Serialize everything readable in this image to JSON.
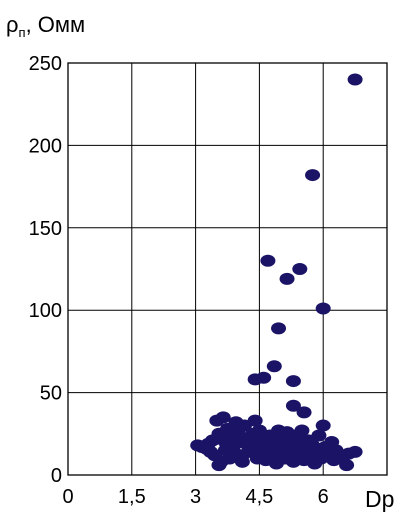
{
  "chart_data": {
    "type": "scatter",
    "ylabel": "ρ",
    "ylabel_subscript": "п",
    "ylabel_unit": ", Омм",
    "xlabel": "Dp",
    "xlim": [
      0,
      7.5
    ],
    "ylim": [
      0,
      250
    ],
    "x_ticks": [
      0,
      1.5,
      3,
      4.5,
      6
    ],
    "x_tick_labels": [
      "0",
      "1,5",
      "3",
      "4,5",
      "6"
    ],
    "y_ticks": [
      0,
      50,
      100,
      150,
      200,
      250
    ],
    "y_tick_labels": [
      "0",
      "50",
      "100",
      "150",
      "200",
      "250"
    ],
    "grid": true,
    "point_color": "#1b1466",
    "points": [
      [
        6.75,
        240
      ],
      [
        5.75,
        182
      ],
      [
        4.7,
        130
      ],
      [
        5.45,
        125
      ],
      [
        5.15,
        119
      ],
      [
        6.0,
        101
      ],
      [
        4.95,
        89
      ],
      [
        4.85,
        66
      ],
      [
        4.6,
        59
      ],
      [
        4.4,
        58
      ],
      [
        5.3,
        57
      ],
      [
        5.3,
        42
      ],
      [
        5.55,
        38
      ],
      [
        3.05,
        18
      ],
      [
        3.15,
        17
      ],
      [
        3.25,
        16
      ],
      [
        3.3,
        19
      ],
      [
        3.35,
        14
      ],
      [
        3.4,
        21
      ],
      [
        3.45,
        12
      ],
      [
        3.5,
        33
      ],
      [
        3.55,
        25
      ],
      [
        3.6,
        8
      ],
      [
        3.65,
        35
      ],
      [
        3.7,
        20
      ],
      [
        3.7,
        15
      ],
      [
        3.75,
        28
      ],
      [
        3.8,
        10
      ],
      [
        3.85,
        23
      ],
      [
        3.9,
        18
      ],
      [
        3.9,
        14
      ],
      [
        3.95,
        32
      ],
      [
        4.0,
        26
      ],
      [
        4.05,
        20
      ],
      [
        4.1,
        12
      ],
      [
        4.1,
        8
      ],
      [
        4.15,
        30
      ],
      [
        4.2,
        22
      ],
      [
        4.25,
        17
      ],
      [
        4.3,
        14
      ],
      [
        4.35,
        25
      ],
      [
        4.4,
        33
      ],
      [
        4.45,
        19
      ],
      [
        4.45,
        10
      ],
      [
        4.5,
        27
      ],
      [
        4.55,
        22
      ],
      [
        4.6,
        15
      ],
      [
        4.65,
        9
      ],
      [
        4.7,
        18
      ],
      [
        4.75,
        24
      ],
      [
        4.8,
        12
      ],
      [
        4.85,
        20
      ],
      [
        4.9,
        7
      ],
      [
        4.95,
        27
      ],
      [
        5.0,
        16
      ],
      [
        5.05,
        22
      ],
      [
        5.1,
        10
      ],
      [
        5.15,
        26
      ],
      [
        5.2,
        14
      ],
      [
        5.25,
        19
      ],
      [
        5.3,
        8
      ],
      [
        5.35,
        24
      ],
      [
        5.4,
        12
      ],
      [
        5.45,
        18
      ],
      [
        5.5,
        27
      ],
      [
        5.55,
        9
      ],
      [
        5.6,
        15
      ],
      [
        5.65,
        21
      ],
      [
        5.7,
        11
      ],
      [
        5.75,
        18
      ],
      [
        5.8,
        7
      ],
      [
        5.85,
        14
      ],
      [
        5.9,
        24
      ],
      [
        5.95,
        10
      ],
      [
        6.0,
        30
      ],
      [
        6.05,
        17
      ],
      [
        6.1,
        13
      ],
      [
        6.2,
        20
      ],
      [
        6.3,
        15
      ],
      [
        6.45,
        10
      ],
      [
        6.55,
        6
      ],
      [
        6.6,
        13
      ],
      [
        6.75,
        14
      ],
      [
        6.25,
        9
      ],
      [
        3.55,
        6
      ]
    ]
  }
}
